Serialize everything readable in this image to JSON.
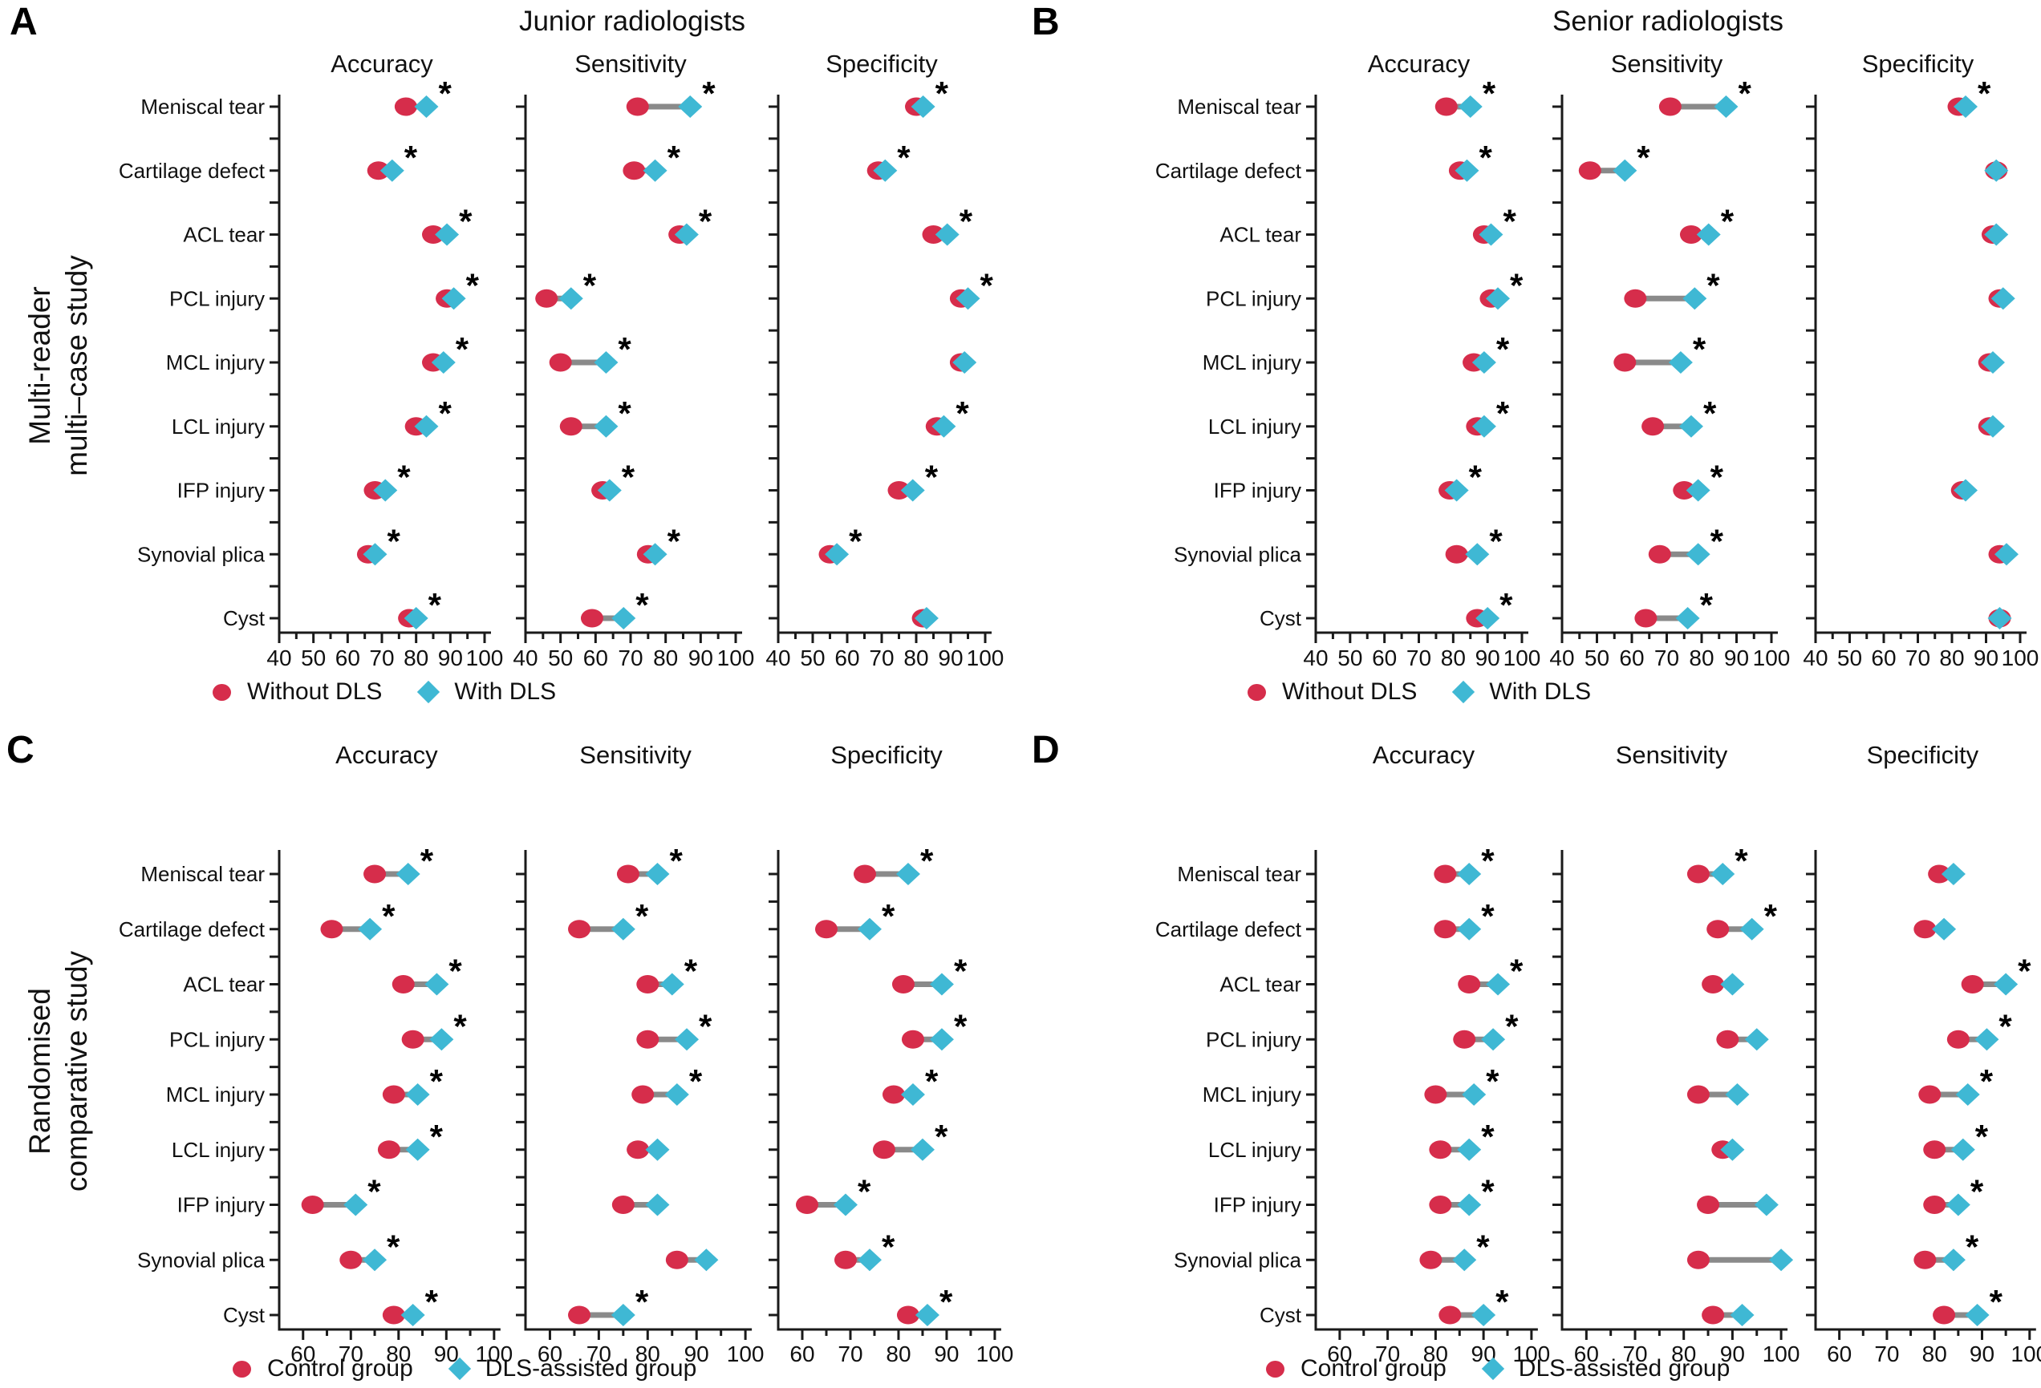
{
  "chart_data": {
    "type": "dumbbell",
    "unit": "%",
    "significance_marker": "*",
    "categories": [
      "Meniscal tear",
      "Cartilage defect",
      "ACL tear",
      "PCL injury",
      "MCL injury",
      "LCL injury",
      "IFP injury",
      "Synovial plica",
      "Cyst"
    ],
    "colors": {
      "without": "#d62d4b",
      "with": "#3fb8d4",
      "connector": "#8a8a8a",
      "axis": "#1a1a1a"
    },
    "panels": [
      {
        "letter": "A",
        "group_title": "Junior radiologists",
        "row_label_lines": [
          "Multi-reader",
          "multi–case study"
        ],
        "legend": {
          "items": [
            {
              "marker": "circle",
              "label": "Without DLS"
            },
            {
              "marker": "diamond",
              "label": "With DLS"
            }
          ]
        },
        "x_ticks": [
          40,
          50,
          60,
          70,
          80,
          90,
          100
        ],
        "xlim": [
          40,
          100
        ],
        "metrics": [
          {
            "name": "Accuracy",
            "without": [
              77,
              69,
              85,
              89,
              85,
              80,
              68,
              66,
              78
            ],
            "with": [
              83,
              73,
              89,
              91,
              88,
              83,
              71,
              68,
              80
            ],
            "significant": [
              1,
              1,
              1,
              1,
              1,
              1,
              1,
              1,
              1
            ]
          },
          {
            "name": "Sensitivity",
            "without": [
              72,
              71,
              84,
              46,
              50,
              53,
              62,
              75,
              59
            ],
            "with": [
              87,
              77,
              86,
              53,
              63,
              63,
              64,
              77,
              68
            ],
            "significant": [
              1,
              1,
              1,
              1,
              1,
              1,
              1,
              1,
              1
            ]
          },
          {
            "name": "Specificity",
            "without": [
              80,
              69,
              85,
              93,
              93,
              86,
              75,
              55,
              82
            ],
            "with": [
              82,
              71,
              89,
              95,
              94,
              88,
              79,
              57,
              83
            ],
            "significant": [
              1,
              1,
              1,
              1,
              0,
              1,
              1,
              1,
              0
            ]
          }
        ]
      },
      {
        "letter": "B",
        "group_title": "Senior radiologists",
        "row_label_lines": null,
        "legend": {
          "items": [
            {
              "marker": "circle",
              "label": "Without DLS"
            },
            {
              "marker": "diamond",
              "label": "With DLS"
            }
          ]
        },
        "x_ticks": [
          40,
          50,
          60,
          70,
          80,
          90,
          100
        ],
        "xlim": [
          40,
          100
        ],
        "metrics": [
          {
            "name": "Accuracy",
            "without": [
              78,
              82,
              89,
              91,
              86,
              87,
              79,
              81,
              87
            ],
            "with": [
              85,
              84,
              91,
              93,
              89,
              89,
              81,
              87,
              90
            ],
            "significant": [
              1,
              1,
              1,
              1,
              1,
              1,
              1,
              1,
              1
            ]
          },
          {
            "name": "Sensitivity",
            "without": [
              71,
              48,
              77,
              61,
              58,
              66,
              75,
              68,
              64
            ],
            "with": [
              87,
              58,
              82,
              78,
              74,
              77,
              79,
              79,
              76
            ],
            "significant": [
              1,
              1,
              1,
              1,
              1,
              1,
              1,
              1,
              1
            ]
          },
          {
            "name": "Specificity",
            "without": [
              82,
              93,
              92,
              94,
              91,
              91,
              83,
              94,
              94
            ],
            "with": [
              84,
              93,
              93,
              95,
              92,
              92,
              84,
              96,
              94
            ],
            "significant": [
              1,
              0,
              0,
              0,
              0,
              0,
              0,
              0,
              0
            ]
          }
        ]
      },
      {
        "letter": "C",
        "group_title": null,
        "row_label_lines": [
          "Randomised",
          "comparative study"
        ],
        "legend": {
          "items": [
            {
              "marker": "circle",
              "label": "Control group"
            },
            {
              "marker": "diamond",
              "label": "DLS-assisted group"
            }
          ]
        },
        "x_ticks": [
          60,
          70,
          80,
          90,
          100
        ],
        "xlim": [
          60,
          100
        ],
        "metrics": [
          {
            "name": "Accuracy",
            "without": [
              75,
              66,
              81,
              83,
              79,
              78,
              62,
              70,
              79
            ],
            "with": [
              82,
              74,
              88,
              89,
              84,
              84,
              71,
              75,
              83
            ],
            "significant": [
              1,
              1,
              1,
              1,
              1,
              1,
              1,
              1,
              1
            ]
          },
          {
            "name": "Sensitivity",
            "without": [
              76,
              66,
              80,
              80,
              79,
              78,
              75,
              86,
              66
            ],
            "with": [
              82,
              75,
              85,
              88,
              86,
              82,
              82,
              92,
              75
            ],
            "significant": [
              1,
              1,
              1,
              1,
              1,
              0,
              0,
              0,
              1
            ]
          },
          {
            "name": "Specificity",
            "without": [
              73,
              65,
              81,
              83,
              79,
              77,
              61,
              69,
              82
            ],
            "with": [
              82,
              74,
              89,
              89,
              83,
              85,
              69,
              74,
              86
            ],
            "significant": [
              1,
              1,
              1,
              1,
              1,
              1,
              1,
              1,
              1
            ]
          }
        ]
      },
      {
        "letter": "D",
        "group_title": null,
        "row_label_lines": null,
        "legend": {
          "items": [
            {
              "marker": "circle",
              "label": "Control group"
            },
            {
              "marker": "diamond",
              "label": "DLS-assisted group"
            }
          ]
        },
        "x_ticks": [
          60,
          70,
          80,
          90,
          100
        ],
        "xlim": [
          60,
          100
        ],
        "metrics": [
          {
            "name": "Accuracy",
            "without": [
              82,
              82,
              87,
              86,
              80,
              81,
              81,
              79,
              83
            ],
            "with": [
              87,
              87,
              93,
              92,
              88,
              87,
              87,
              86,
              90
            ],
            "significant": [
              1,
              1,
              1,
              1,
              1,
              1,
              1,
              1,
              1
            ]
          },
          {
            "name": "Sensitivity",
            "without": [
              83,
              87,
              86,
              89,
              83,
              88,
              85,
              83,
              86
            ],
            "with": [
              88,
              94,
              90,
              95,
              91,
              90,
              97,
              100,
              92
            ],
            "significant": [
              1,
              1,
              0,
              0,
              0,
              0,
              0,
              0,
              0
            ]
          },
          {
            "name": "Specificity",
            "without": [
              81,
              78,
              88,
              85,
              79,
              80,
              80,
              78,
              82
            ],
            "with": [
              84,
              82,
              95,
              91,
              87,
              86,
              85,
              84,
              89
            ],
            "significant": [
              0,
              0,
              1,
              1,
              1,
              1,
              1,
              1,
              1
            ]
          }
        ]
      }
    ]
  }
}
